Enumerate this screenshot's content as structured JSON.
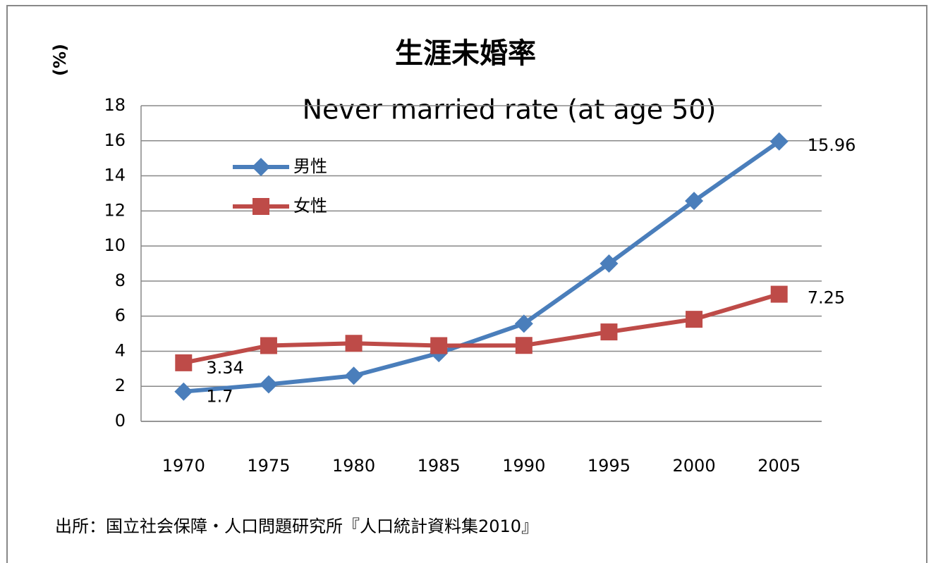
{
  "chart_data": {
    "type": "line",
    "title": "生涯未婚率",
    "subtitle": "Never married rate (at age 50)",
    "y_label": "(%)",
    "source": "出所：国立社会保障・人口問題研究所『人口統計資料集2010』",
    "categories": [
      "1970",
      "1975",
      "1980",
      "1985",
      "1990",
      "1995",
      "2000",
      "2005"
    ],
    "series": [
      {
        "name": "男性",
        "color": "#4a7ebb",
        "marker": "diamond",
        "values": [
          1.7,
          2.11,
          2.6,
          3.89,
          5.57,
          9.0,
          12.57,
          15.96
        ],
        "label_indices": [
          0,
          7
        ]
      },
      {
        "name": "女性",
        "color": "#be4b48",
        "marker": "square",
        "values": [
          3.34,
          4.32,
          4.45,
          4.32,
          4.33,
          5.1,
          5.82,
          7.25
        ],
        "label_indices": [
          0,
          7
        ]
      }
    ],
    "ylim": [
      0,
      18
    ],
    "yticks": [
      0,
      2,
      4,
      6,
      8,
      10,
      12,
      14,
      16,
      18
    ],
    "grid": true,
    "legend": "upper left"
  }
}
